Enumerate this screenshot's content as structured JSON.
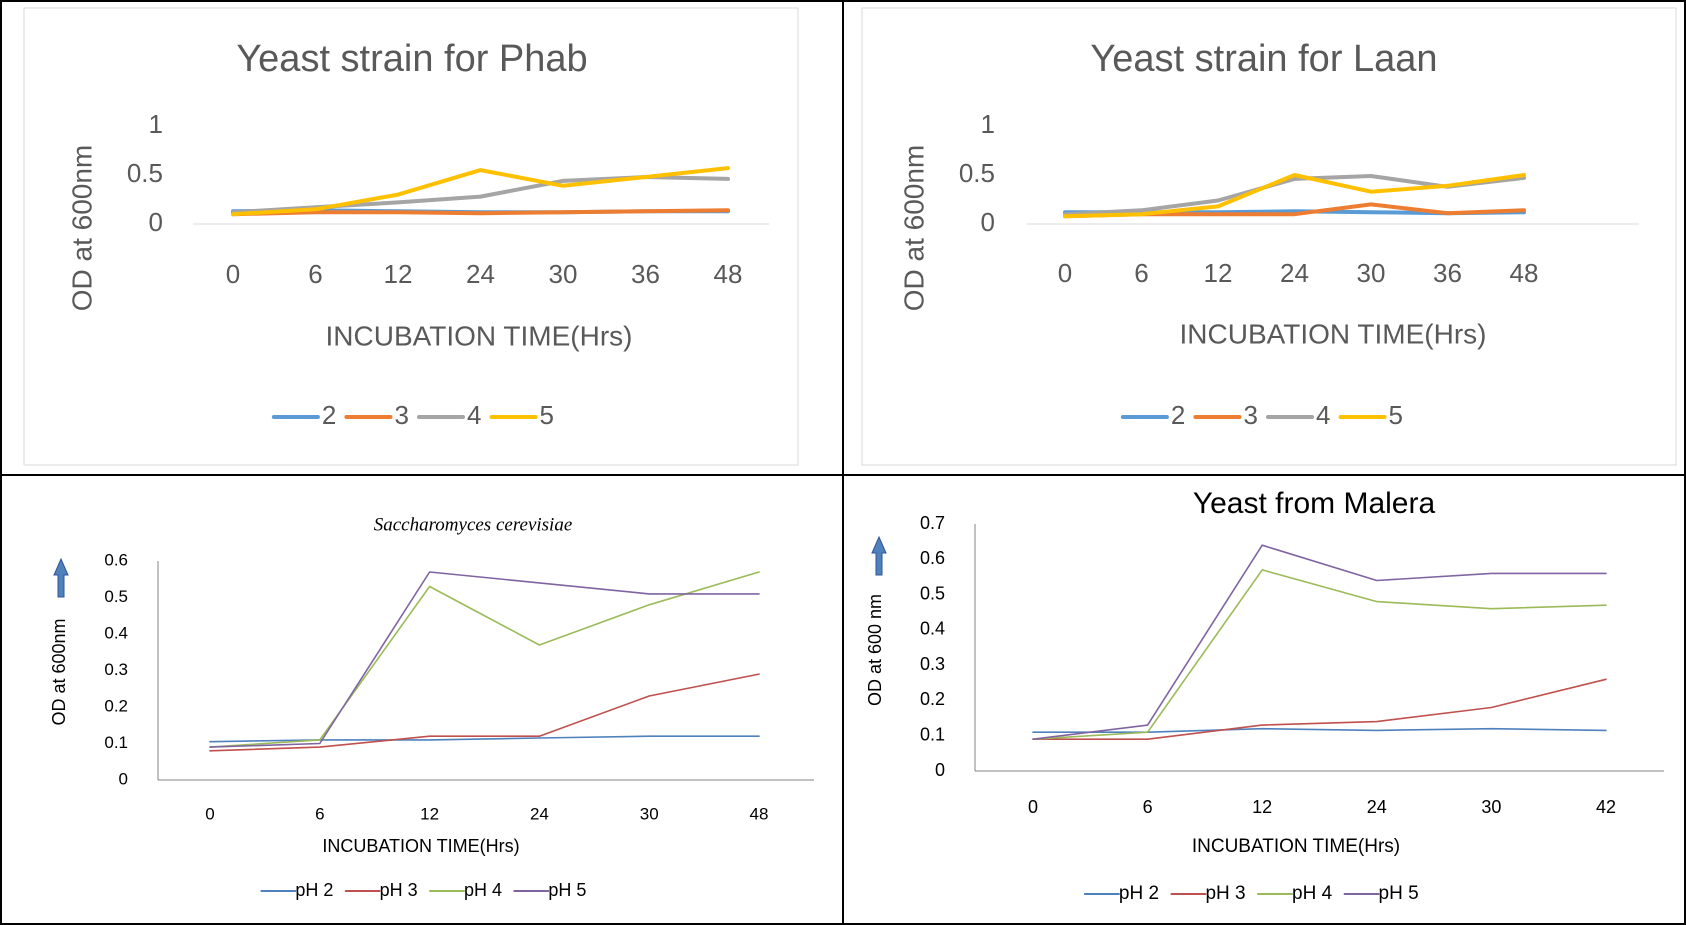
{
  "chart_data": [
    {
      "type": "line",
      "title": "Yeast strain for Phab",
      "y_label": "OD at 600nm",
      "x_label": "INCUBATION TIME(Hrs)",
      "categories": [
        "0",
        "6",
        "12",
        "24",
        "30",
        "36",
        "48"
      ],
      "ylim": [
        0,
        1
      ],
      "yticks": [
        0,
        0.5,
        1
      ],
      "series": [
        {
          "name": "2",
          "color": "#5b9bd5",
          "values": [
            0.13,
            0.14,
            0.13,
            0.12,
            0.12,
            0.13,
            0.13
          ]
        },
        {
          "name": "3",
          "color": "#ed7d31",
          "values": [
            0.1,
            0.12,
            0.12,
            0.11,
            0.12,
            0.13,
            0.14
          ]
        },
        {
          "name": "4",
          "color": "#a5a5a5",
          "values": [
            0.12,
            0.17,
            0.22,
            0.28,
            0.44,
            0.48,
            0.46
          ]
        },
        {
          "name": "5",
          "color": "#ffc000",
          "values": [
            0.1,
            0.15,
            0.3,
            0.55,
            0.39,
            0.48,
            0.57
          ]
        }
      ]
    },
    {
      "type": "line",
      "title": "Yeast strain for Laan",
      "y_label": "OD at 600nm",
      "x_label": "INCUBATION TIME(Hrs)",
      "categories": [
        "0",
        "6",
        "12",
        "24",
        "30",
        "36",
        "48"
      ],
      "ylim": [
        0,
        1
      ],
      "yticks": [
        0,
        0.5,
        1
      ],
      "series": [
        {
          "name": "2",
          "color": "#5b9bd5",
          "values": [
            0.12,
            0.12,
            0.12,
            0.13,
            0.12,
            0.11,
            0.12
          ]
        },
        {
          "name": "3",
          "color": "#ed7d31",
          "values": [
            0.08,
            0.1,
            0.1,
            0.1,
            0.2,
            0.11,
            0.14
          ]
        },
        {
          "name": "4",
          "color": "#a5a5a5",
          "values": [
            0.1,
            0.14,
            0.24,
            0.46,
            0.49,
            0.38,
            0.47
          ]
        },
        {
          "name": "5",
          "color": "#ffc000",
          "values": [
            0.08,
            0.1,
            0.18,
            0.5,
            0.33,
            0.39,
            0.5
          ]
        }
      ]
    },
    {
      "type": "line",
      "title": "Saccharomyces cerevisiae",
      "y_label": "OD at 600nm",
      "x_label": "INCUBATION TIME(Hrs)",
      "categories": [
        "0",
        "6",
        "12",
        "24",
        "30",
        "48"
      ],
      "ylim": [
        0,
        0.6
      ],
      "yticks": [
        0,
        0.1,
        0.2,
        0.3,
        0.4,
        0.5,
        0.6
      ],
      "series": [
        {
          "name": "pH 2",
          "color": "#4f81bd",
          "values": [
            0.105,
            0.11,
            0.11,
            0.115,
            0.12,
            0.12
          ]
        },
        {
          "name": "pH 3",
          "color": "#c0504d",
          "values": [
            0.08,
            0.09,
            0.12,
            0.12,
            0.23,
            0.29
          ]
        },
        {
          "name": "pH 4",
          "color": "#9bbb59",
          "values": [
            0.09,
            0.11,
            0.53,
            0.37,
            0.48,
            0.57
          ]
        },
        {
          "name": "pH 5",
          "color": "#8064a2",
          "values": [
            0.09,
            0.1,
            0.57,
            0.54,
            0.51,
            0.51
          ]
        }
      ]
    },
    {
      "type": "line",
      "title": "Yeast from Malera",
      "y_label": "OD at 600 nm",
      "x_label": "INCUBATION TIME(Hrs)",
      "categories": [
        "0",
        "6",
        "12",
        "24",
        "30",
        "42"
      ],
      "ylim": [
        0,
        0.7
      ],
      "yticks": [
        0,
        0.1,
        0.2,
        0.3,
        0.4,
        0.5,
        0.6,
        0.7
      ],
      "series": [
        {
          "name": "pH 2",
          "color": "#4f81bd",
          "values": [
            0.11,
            0.11,
            0.12,
            0.115,
            0.12,
            0.115
          ]
        },
        {
          "name": "pH 3",
          "color": "#c0504d",
          "values": [
            0.09,
            0.09,
            0.13,
            0.14,
            0.18,
            0.26
          ]
        },
        {
          "name": "pH 4",
          "color": "#9bbb59",
          "values": [
            0.09,
            0.11,
            0.57,
            0.48,
            0.46,
            0.47
          ]
        },
        {
          "name": "pH 5",
          "color": "#8064a2",
          "values": [
            0.09,
            0.13,
            0.64,
            0.54,
            0.56,
            0.56
          ]
        }
      ]
    }
  ]
}
